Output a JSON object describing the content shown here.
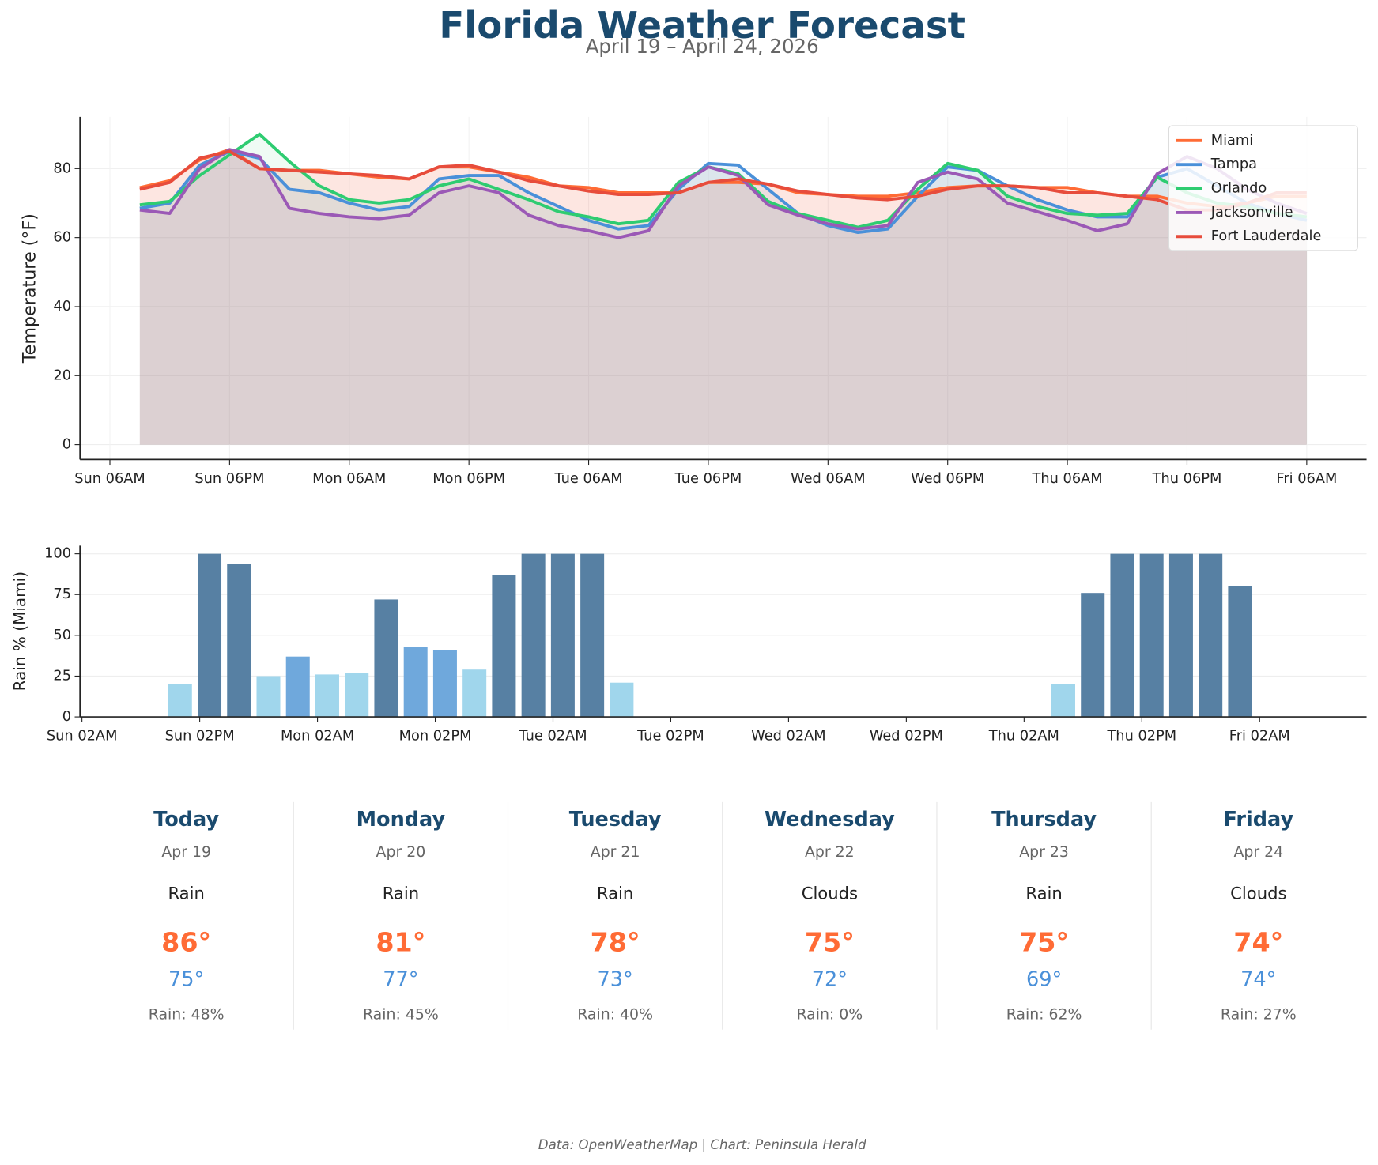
{
  "header": {
    "title": "Florida Weather Forecast",
    "subtitle": "April 19 – April 24, 2026"
  },
  "chart_data": [
    {
      "type": "line",
      "ylabel": "Temperature (°F)",
      "xlim": [
        -2,
        41
      ],
      "ylim": [
        -4.3,
        95
      ],
      "yticks": [
        0,
        20,
        40,
        60,
        80
      ],
      "grid": true,
      "legend": "upper right",
      "fill": true,
      "xticks": [
        {
          "value": -1,
          "label": "Sun 06AM"
        },
        {
          "value": 3,
          "label": "Sun 06PM"
        },
        {
          "value": 7,
          "label": "Mon 06AM"
        },
        {
          "value": 11,
          "label": "Mon 06PM"
        },
        {
          "value": 15,
          "label": "Tue 06AM"
        },
        {
          "value": 19,
          "label": "Tue 06PM"
        },
        {
          "value": 23,
          "label": "Wed 06AM"
        },
        {
          "value": 27,
          "label": "Wed 06PM"
        },
        {
          "value": 31,
          "label": "Thu 06AM"
        },
        {
          "value": 35,
          "label": "Thu 06PM"
        },
        {
          "value": 39,
          "label": "Fri 06AM"
        }
      ],
      "series": [
        {
          "name": "Miami",
          "color": "#ff6b35",
          "values": [
            74.5,
            76.5,
            82.5,
            85.5,
            80,
            79.5,
            79.5,
            78.5,
            77.5,
            77,
            80.5,
            80.5,
            79,
            77.5,
            75,
            74.5,
            73,
            73,
            73,
            76,
            76,
            75.5,
            73,
            72.5,
            72,
            72,
            73,
            74.5,
            75,
            75,
            74.5,
            74.5,
            73,
            72,
            72,
            70,
            69,
            70,
            72,
            72
          ]
        },
        {
          "name": "Tampa",
          "color": "#4a90d9",
          "values": [
            68.5,
            70,
            81,
            85,
            83,
            74,
            73,
            70,
            68,
            69,
            77,
            78,
            78,
            73,
            69,
            65,
            62.5,
            63.5,
            74,
            81.5,
            81,
            74,
            67,
            63.5,
            61.5,
            62.5,
            72,
            80.5,
            79.5,
            75,
            71,
            68,
            66,
            66,
            77.5,
            80,
            75,
            70,
            67,
            65
          ]
        },
        {
          "name": "Orlando",
          "color": "#2ecc71",
          "values": [
            69.5,
            70.5,
            78,
            84,
            90,
            82,
            75,
            71,
            70,
            71,
            75,
            77,
            74,
            71,
            67.5,
            66,
            64,
            65,
            76,
            80.5,
            78.5,
            70.5,
            67,
            65,
            63,
            65,
            74,
            81.5,
            79.5,
            72,
            69,
            67,
            66.5,
            67,
            77.5,
            73,
            70,
            69,
            67,
            66
          ]
        },
        {
          "name": "Jacksonville",
          "color": "#9b59b6",
          "values": [
            68,
            67,
            80,
            85.5,
            83.5,
            68.5,
            67,
            66,
            65.5,
            66.5,
            73,
            75,
            73,
            66.5,
            63.5,
            62,
            60,
            62,
            75,
            80.5,
            78,
            69.5,
            66.5,
            64,
            62.5,
            63.5,
            76,
            79,
            77,
            70,
            67.5,
            65,
            62,
            64,
            78.5,
            83.5,
            80,
            74,
            70,
            67
          ]
        },
        {
          "name": "Fort Lauderdale",
          "color": "#e74c3c",
          "values": [
            74,
            76,
            83,
            85,
            80,
            79.5,
            79,
            78.5,
            78,
            77,
            80.5,
            81,
            79,
            76.5,
            75,
            73.5,
            72.5,
            72.5,
            73,
            76,
            77,
            75.5,
            73.5,
            72.5,
            71.5,
            71,
            72,
            74,
            75,
            75,
            74.5,
            73,
            73,
            72,
            71,
            68,
            68,
            70,
            73,
            73
          ]
        }
      ]
    },
    {
      "type": "bar",
      "ylabel": "Rain % (Miami)",
      "xlim": [
        -2.4,
        41.3
      ],
      "ylim": [
        0,
        105
      ],
      "yticks": [
        0,
        25,
        50,
        75,
        100
      ],
      "grid": true,
      "xticks": [
        {
          "value": -2.333,
          "label": "Sun 02AM"
        },
        {
          "value": 1.667,
          "label": "Sun 02PM"
        },
        {
          "value": 5.667,
          "label": "Mon 02AM"
        },
        {
          "value": 9.667,
          "label": "Mon 02PM"
        },
        {
          "value": 13.667,
          "label": "Tue 02AM"
        },
        {
          "value": 17.667,
          "label": "Tue 02PM"
        },
        {
          "value": 21.667,
          "label": "Wed 02AM"
        },
        {
          "value": 25.667,
          "label": "Wed 02PM"
        },
        {
          "value": 29.667,
          "label": "Thu 02AM"
        },
        {
          "value": 33.667,
          "label": "Thu 02PM"
        },
        {
          "value": 37.667,
          "label": "Fri 02AM"
        }
      ],
      "values": [
        0,
        20,
        100,
        94,
        25,
        37,
        26,
        27,
        72,
        43,
        41,
        29,
        87,
        100,
        100,
        100,
        21,
        0,
        0,
        0,
        0,
        0,
        0,
        0,
        0,
        0,
        0,
        0,
        0,
        0,
        0,
        20,
        76,
        100,
        100,
        100,
        100,
        80,
        0,
        0
      ],
      "colors": [
        "#a0d6ec",
        "#a0d6ec",
        "#5780a3",
        "#5780a3",
        "#a0d6ec",
        "#6fa8dc",
        "#a0d6ec",
        "#a0d6ec",
        "#5780a3",
        "#6fa8dc",
        "#6fa8dc",
        "#a0d6ec",
        "#5780a3",
        "#5780a3",
        "#5780a3",
        "#5780a3",
        "#a0d6ec",
        "#a0d6ec",
        "#a0d6ec",
        "#a0d6ec",
        "#a0d6ec",
        "#a0d6ec",
        "#a0d6ec",
        "#a0d6ec",
        "#a0d6ec",
        "#a0d6ec",
        "#a0d6ec",
        "#a0d6ec",
        "#a0d6ec",
        "#a0d6ec",
        "#a0d6ec",
        "#a0d6ec",
        "#5780a3",
        "#5780a3",
        "#5780a3",
        "#5780a3",
        "#5780a3",
        "#5780a3",
        "#a0d6ec",
        "#a0d6ec"
      ]
    }
  ],
  "forecast": [
    {
      "day": "Today",
      "date": "Apr 19",
      "condition": "Rain",
      "high": "86°",
      "low": "75°",
      "rain": "Rain: 48%"
    },
    {
      "day": "Monday",
      "date": "Apr 20",
      "condition": "Rain",
      "high": "81°",
      "low": "77°",
      "rain": "Rain: 45%"
    },
    {
      "day": "Tuesday",
      "date": "Apr 21",
      "condition": "Rain",
      "high": "78°",
      "low": "73°",
      "rain": "Rain: 40%"
    },
    {
      "day": "Wednesday",
      "date": "Apr 22",
      "condition": "Clouds",
      "high": "75°",
      "low": "72°",
      "rain": "Rain: 0%"
    },
    {
      "day": "Thursday",
      "date": "Apr 23",
      "condition": "Rain",
      "high": "75°",
      "low": "69°",
      "rain": "Rain: 62%"
    },
    {
      "day": "Friday",
      "date": "Apr 24",
      "condition": "Clouds",
      "high": "74°",
      "low": "74°",
      "rain": "Rain: 27%"
    }
  ],
  "footer": "Data: OpenWeatherMap | Chart: Peninsula Herald"
}
